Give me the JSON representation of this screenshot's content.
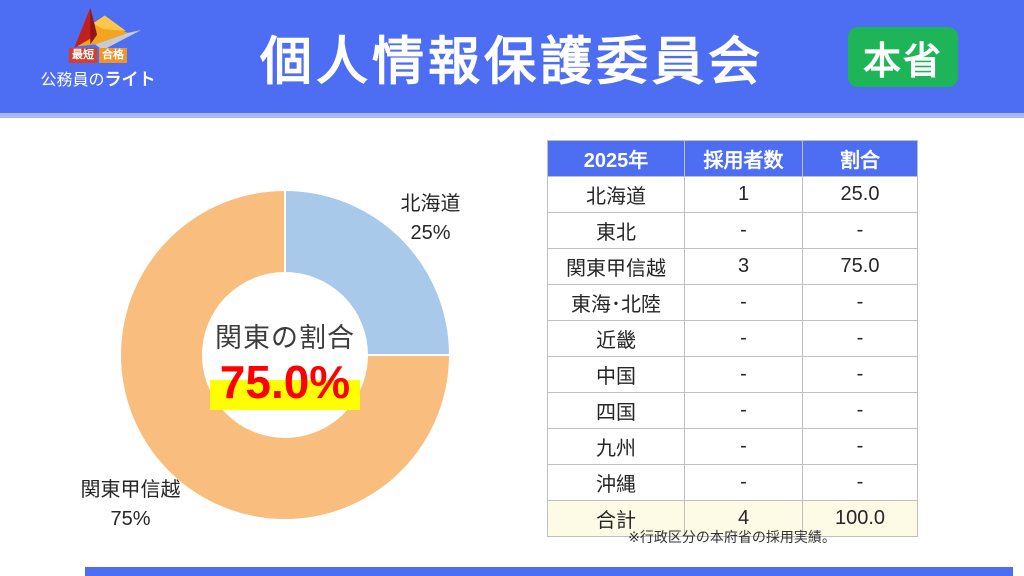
{
  "header": {
    "title": "個人情報保護委員会",
    "badge_label": "本省",
    "logo": {
      "badge1": "最短",
      "badge2": "合格",
      "brand_prefix": "公務員の",
      "brand_bold": "ライト"
    }
  },
  "colors": {
    "header_bg": "#4D6EF2",
    "header_underline": "#A9B8F8",
    "badge_green": "#1EB558",
    "slice_blue": "#A9C9EB",
    "slice_orange": "#F9BE7D",
    "value_red": "#FF0000",
    "highlight_yellow": "#FFFF00",
    "table_header_bg": "#4D6EF2",
    "total_row_bg": "#FDFAE6",
    "table_border": "#BFBFBF",
    "bottom_bar": "#4D6EF2"
  },
  "chart_data": {
    "type": "pie",
    "donut": true,
    "start_angle_deg": 0,
    "direction": "clockwise",
    "segments": [
      {
        "label": "北海道",
        "value": 25,
        "pct_label": "25%",
        "color": "#A9C9EB"
      },
      {
        "label": "関東甲信越",
        "value": 75,
        "pct_label": "75%",
        "color": "#F9BE7D"
      }
    ],
    "center": {
      "caption": "関東の割合",
      "value": "75.0%"
    }
  },
  "table": {
    "headers": [
      "2025年",
      "採用者数",
      "割合"
    ],
    "rows": [
      [
        "北海道",
        "1",
        "25.0"
      ],
      [
        "東北",
        "-",
        "-"
      ],
      [
        "関東甲信越",
        "3",
        "75.0"
      ],
      [
        "東海･北陸",
        "-",
        "-"
      ],
      [
        "近畿",
        "-",
        "-"
      ],
      [
        "中国",
        "-",
        "-"
      ],
      [
        "四国",
        "-",
        "-"
      ],
      [
        "九州",
        "-",
        "-"
      ],
      [
        "沖縄",
        "-",
        "-"
      ],
      [
        "合計",
        "4",
        "100.0"
      ]
    ],
    "total_row_index": 9,
    "footnote": "※行政区分の本府省の採用実績。"
  }
}
